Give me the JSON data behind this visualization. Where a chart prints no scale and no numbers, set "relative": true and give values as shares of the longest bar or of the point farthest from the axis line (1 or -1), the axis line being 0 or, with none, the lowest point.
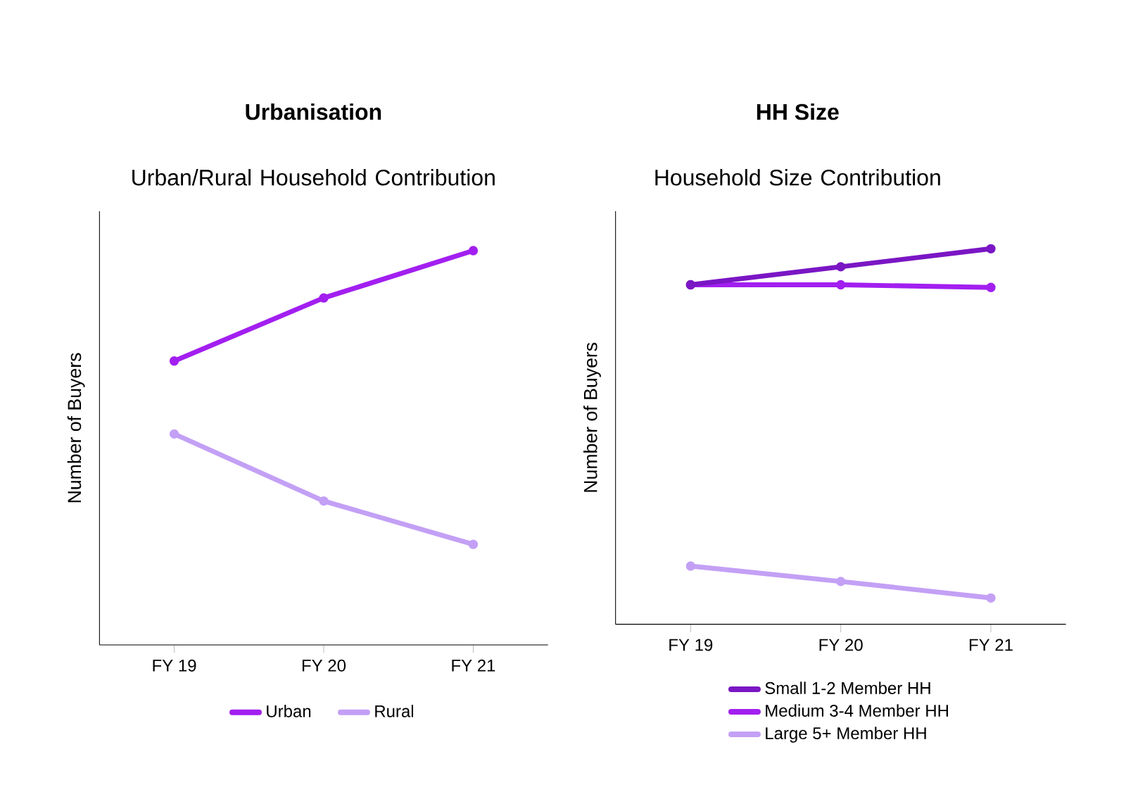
{
  "chart_data": [
    {
      "type": "line",
      "title": "Urbanisation",
      "subtitle": "Urban/Rural Household Contribution",
      "ylabel": "Number of Buyers",
      "relative": true,
      "categories": [
        "FY 19",
        "FY 20",
        "FY 21"
      ],
      "legend": "bottom",
      "marker": "circle",
      "series": [
        {
          "name": "Urban",
          "color": "#a21ff0",
          "values": [
            0.72,
            0.88,
            1
          ]
        },
        {
          "name": "Rural",
          "color": "#c3a0f5",
          "values": [
            0.535,
            0.365,
            0.255
          ]
        }
      ]
    },
    {
      "type": "line",
      "title": "HH Size",
      "subtitle": "Household Size Contribution",
      "ylabel": "Number of Buyers",
      "relative": true,
      "categories": [
        "FY 19",
        "FY 20",
        "FY 21"
      ],
      "legend": "bottom",
      "marker": "circle",
      "series": [
        {
          "name": "Small 1-2 Member HH",
          "color": "#7a16c4",
          "values": [
            0.904,
            0.952,
            1
          ]
        },
        {
          "name": "Medium 3-4 Member HH",
          "color": "#a21ff0",
          "values": [
            0.904,
            0.904,
            0.897
          ]
        },
        {
          "name": "Large 5+ Member HH",
          "color": "#c3a0f5",
          "values": [
            0.155,
            0.114,
            0.07
          ]
        }
      ]
    }
  ]
}
